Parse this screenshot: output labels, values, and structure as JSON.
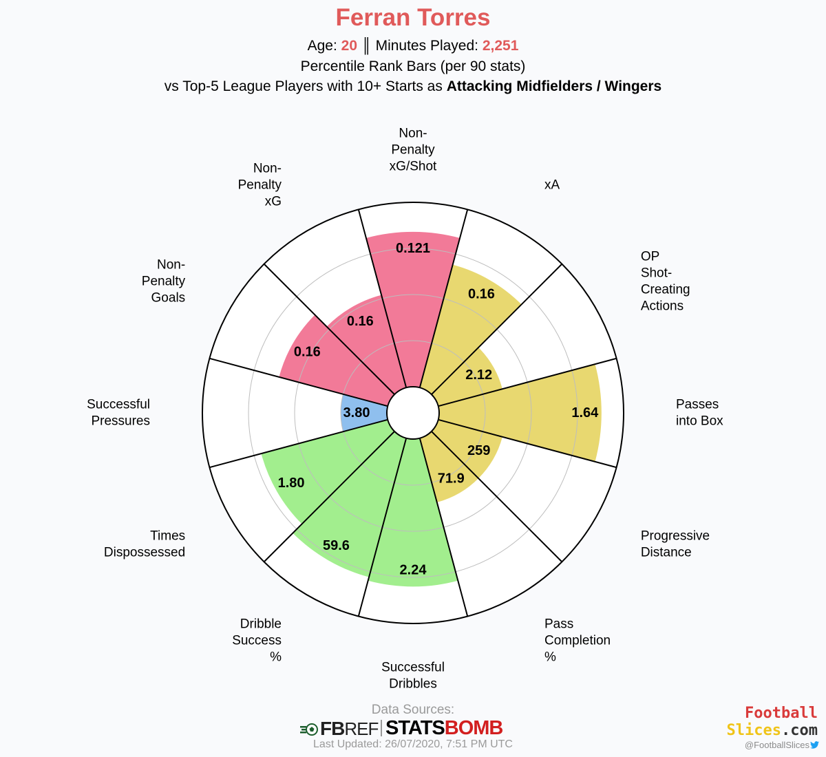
{
  "header": {
    "title": "Ferran Torres",
    "age_label": "Age: ",
    "age_value": "20",
    "separator": " ║ ",
    "minutes_label": "Minutes Played: ",
    "minutes_value": "2,251",
    "subtitle": "Percentile Rank Bars (per 90 stats)",
    "comparison_prefix": "vs Top-5 League Players with 10+ Starts as ",
    "comparison_group": "Attacking Midfielders / Wingers"
  },
  "colors": {
    "accent": "#e05a5a",
    "attacking": "#f27a98",
    "possession": "#e8d870",
    "dribbling": "#a2ee8e",
    "defending": "#8fbfee"
  },
  "chart_data": {
    "type": "polar-bar",
    "r_range": [
      0,
      100
    ],
    "grid": true,
    "segments": [
      {
        "label": [
          "Non-",
          "Penalty",
          "Goals"
        ],
        "value_label": "0.16",
        "percentile": 61,
        "group": "attacking"
      },
      {
        "label": [
          "Non-",
          "Penalty",
          "xG"
        ],
        "value_label": "0.16",
        "percentile": 52,
        "group": "attacking"
      },
      {
        "label": [
          "Non-",
          "Penalty",
          "xG/Shot"
        ],
        "value_label": "0.121",
        "percentile": 84,
        "group": "attacking"
      },
      {
        "label": [
          "xA"
        ],
        "value_label": "0.16",
        "percentile": 69,
        "group": "possession"
      },
      {
        "label": [
          "OP",
          "Shot-",
          "Creating",
          "Actions"
        ],
        "value_label": "2.12",
        "percentile": 36,
        "group": "possession"
      },
      {
        "label": [
          "Passes",
          "into Box"
        ],
        "value_label": "1.64",
        "percentile": 88,
        "group": "possession"
      },
      {
        "label": [
          "Progressive",
          "Distance"
        ],
        "value_label": "259",
        "percentile": 36,
        "group": "possession"
      },
      {
        "label": [
          "Pass",
          "Completion",
          "%"
        ],
        "value_label": "71.9",
        "percentile": 36,
        "group": "possession"
      },
      {
        "label": [
          "Successful",
          "Dribbles"
        ],
        "value_label": "2.24",
        "percentile": 80,
        "group": "dribbling"
      },
      {
        "label": [
          "Dribble",
          "Success",
          "%"
        ],
        "value_label": "59.6",
        "percentile": 78,
        "group": "dribbling"
      },
      {
        "label": [
          "Times",
          "Dispossessed"
        ],
        "value_label": "1.80",
        "percentile": 71,
        "group": "dribbling"
      },
      {
        "label": [
          "Successful",
          "Pressures"
        ],
        "value_label": "3.80",
        "percentile": 25,
        "group": "defending"
      }
    ]
  },
  "footer": {
    "data_sources": "Data Sources:",
    "fbref_fb": "FB",
    "fbref_ref": "REF",
    "statsbomb_1": "STATS",
    "statsbomb_2": "BOMB",
    "last_updated": "Last Updated: 26/07/2020, 7:51 PM UTC",
    "brand_line1": "Football",
    "brand_line2a": "Slices",
    "brand_line2b": ".com",
    "handle": "@FootballSlices",
    "twitter_icon": "twitter-bird-icon"
  }
}
